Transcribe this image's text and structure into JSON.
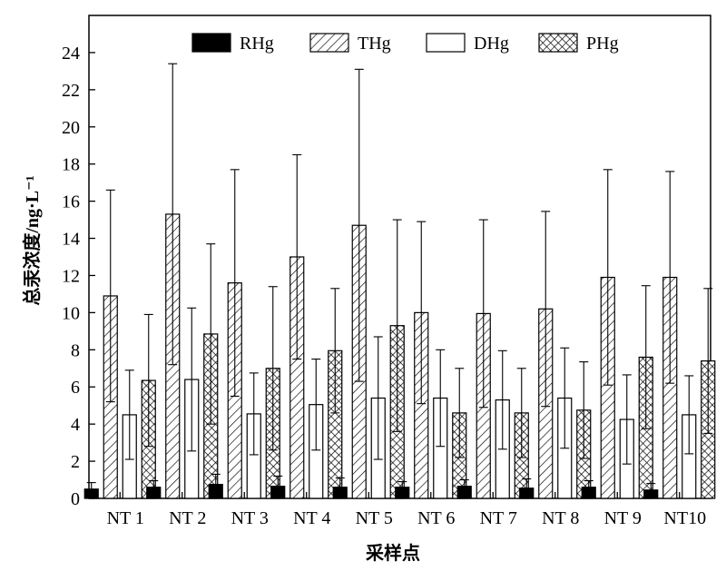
{
  "chart_data": {
    "type": "bar",
    "title": "",
    "xlabel": "采样点",
    "ylabel": "总汞浓度/ng·L⁻¹",
    "ylim": [
      0,
      26
    ],
    "yticks": [
      0,
      2,
      4,
      6,
      8,
      10,
      12,
      14,
      16,
      18,
      20,
      22,
      24
    ],
    "grid": false,
    "legend_position": "top",
    "categories": [
      "NT 1",
      "NT 2",
      "NT 3",
      "NT 4",
      "NT 5",
      "NT 6",
      "NT 7",
      "NT 8",
      "NT 9",
      "NT10"
    ],
    "series": [
      {
        "name": "RHg",
        "fill": "solid-black",
        "values": [
          0.5,
          0.6,
          0.75,
          0.65,
          0.6,
          0.6,
          0.65,
          0.55,
          0.6,
          0.45
        ],
        "errors": [
          0.35,
          0.35,
          0.55,
          0.55,
          0.5,
          0.3,
          0.35,
          0.5,
          0.35,
          0.35
        ]
      },
      {
        "name": "THg",
        "fill": "diagonal-hatch",
        "values": [
          10.9,
          15.3,
          11.6,
          13.0,
          14.7,
          10.0,
          9.95,
          10.2,
          11.9,
          11.9
        ],
        "errors": [
          5.7,
          8.1,
          6.1,
          5.5,
          8.4,
          4.9,
          5.05,
          5.25,
          5.8,
          5.7
        ]
      },
      {
        "name": "DHg",
        "fill": "white",
        "values": [
          4.5,
          6.4,
          4.55,
          5.05,
          5.4,
          5.4,
          5.3,
          5.4,
          4.25,
          4.5
        ],
        "errors": [
          2.4,
          3.85,
          2.2,
          2.45,
          3.3,
          2.6,
          2.65,
          2.7,
          2.4,
          2.1
        ]
      },
      {
        "name": "PHg",
        "fill": "crosshatch",
        "values": [
          6.35,
          8.85,
          7.0,
          7.95,
          9.3,
          4.6,
          4.6,
          4.75,
          7.6,
          7.4
        ],
        "errors": [
          3.55,
          4.85,
          4.4,
          3.35,
          5.7,
          2.4,
          2.4,
          2.6,
          3.85,
          3.9
        ]
      }
    ]
  }
}
